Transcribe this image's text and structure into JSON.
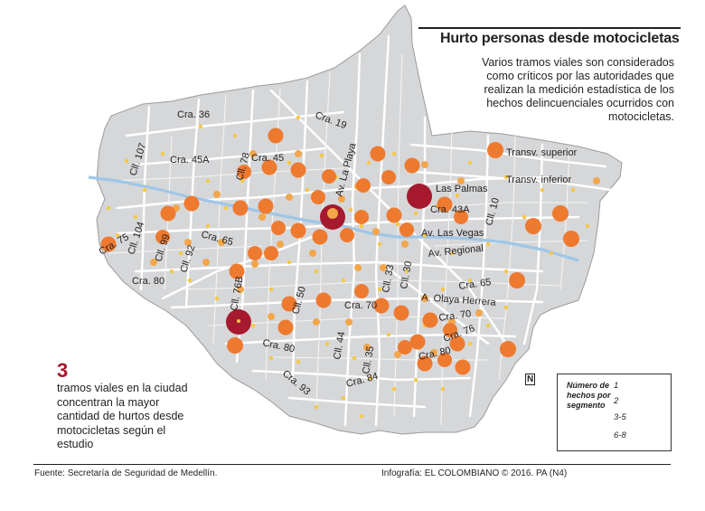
{
  "title": "Hurto personas desde motocicletas",
  "subtitle": "Varios tramos viales son considerados como críticos por las autoridades que realizan la medición estadística de los hechos delincuenciales ocurridos con motocicletas.",
  "highlight": {
    "number": "3",
    "text": "tramos viales en la ciudad concentran la mayor cantidad de hurtos desde motocicletas según el estudio"
  },
  "legend": {
    "title": "Número de hechos por segmento",
    "items": [
      {
        "label": "1",
        "color": "#f5c842"
      },
      {
        "label": "2",
        "color": "#f3a64a"
      },
      {
        "label": "3-5",
        "color": "#ee7a2f"
      },
      {
        "label": "6-8",
        "color": "#a6192e"
      }
    ]
  },
  "north_symbol": "N",
  "footer": {
    "source": "Fuente: Secretaría de Seguridad de Medellín.",
    "credit": "Infografía: EL COLOMBIANO © 2016. PA (N4)"
  },
  "streets": [
    "Cra. 36",
    "Cra. 19",
    "Cll. 107",
    "Cra. 45A",
    "Cll. 78",
    "Cra. 45",
    "Av. La Playa",
    "Transv. superior",
    "Transv. inferior",
    "Las Palmas",
    "Cra. 43A",
    "Cll. 10",
    "Cll. 104",
    "Cra. 75",
    "Cll. 99",
    "Cra. 65",
    "Av. Las Vegas",
    "Av. Regional",
    "Cll. 92",
    "Cra. 80",
    "Cll. 76B",
    "Cll. 50",
    "Cll. 33",
    "Cll. 30",
    "Cra. 65",
    "A. Olaya Herrera",
    "Cra. 70",
    "Cra. 70",
    "Cra. 76",
    "Cra. 80",
    "Cll. 44",
    "Cll. 35",
    "Cra. 80",
    "Cra. 84",
    "Cra. 93"
  ],
  "colors": {
    "territory": "#d6d7d9",
    "streets": "#ffffff",
    "river": "#9fc6e6",
    "level_1": "#f5c842",
    "level_2": "#f3a64a",
    "level_3_5": "#ee7a2f",
    "level_6_8": "#a6192e"
  },
  "incident_points": [
    {
      "lon": 0,
      "level": "6-8"
    }
  ]
}
